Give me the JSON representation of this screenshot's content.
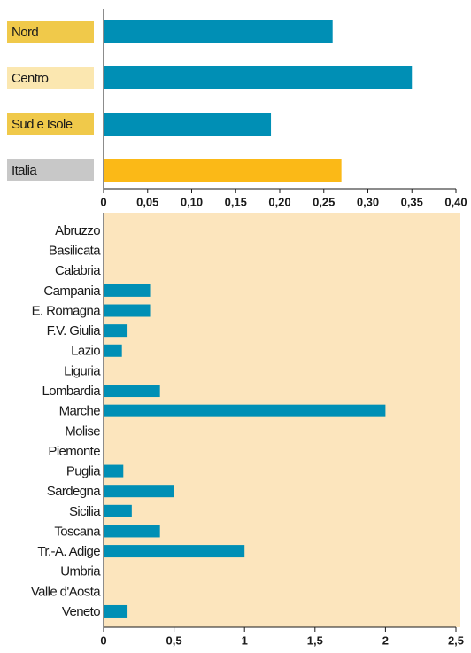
{
  "chart_data": [
    {
      "type": "bar",
      "orientation": "horizontal",
      "categories": [
        "Nord",
        "Centro",
        "Sud e Isole",
        "Italia"
      ],
      "values": [
        0.26,
        0.35,
        0.19,
        0.27
      ],
      "colors": [
        "#008fb5",
        "#008fb5",
        "#008fb5",
        "#fbb917"
      ],
      "label_colors": [
        "#f0c94a",
        "#fbe7b0",
        "#f0c94a",
        "#c8c8c8"
      ],
      "xlim": [
        0,
        0.4
      ],
      "xticks": [
        0,
        {
          "value": 0.05,
          "label": "0,05"
        },
        {
          "value": 0.1,
          "label": "0,10"
        },
        {
          "value": 0.15,
          "label": "0,15"
        },
        {
          "value": 0.2,
          "label": "0,20"
        },
        {
          "value": 0.25,
          "label": "0,25"
        },
        {
          "value": 0.3,
          "label": "0,30"
        },
        {
          "value": 0.35,
          "label": "0,35"
        },
        {
          "value": 0.4,
          "label": "0,40"
        }
      ]
    },
    {
      "type": "bar",
      "orientation": "horizontal",
      "categories": [
        "Abruzzo",
        "Basilicata",
        "Calabria",
        "Campania",
        "E. Romagna",
        "F.V. Giulia",
        "Lazio",
        "Liguria",
        "Lombardia",
        "Marche",
        "Molise",
        "Piemonte",
        "Puglia",
        "Sardegna",
        "Sicilia",
        "Toscana",
        "Tr.-A. Adige",
        "Umbria",
        "Valle d'Aosta",
        "Veneto"
      ],
      "values": [
        0,
        0,
        0,
        0.33,
        0.33,
        0.17,
        0.13,
        0,
        0.4,
        2.0,
        0,
        0,
        0.14,
        0.5,
        0.2,
        0.4,
        1.0,
        0,
        0,
        0.17
      ],
      "color": "#008fb5",
      "background": "#fce5bd",
      "xlim": [
        0,
        2.5
      ],
      "xticks": [
        0,
        {
          "value": 0.5,
          "label": "0,5"
        },
        1,
        {
          "value": 1.5,
          "label": "1,5"
        },
        2,
        {
          "value": 2.5,
          "label": "2,5"
        }
      ]
    }
  ]
}
